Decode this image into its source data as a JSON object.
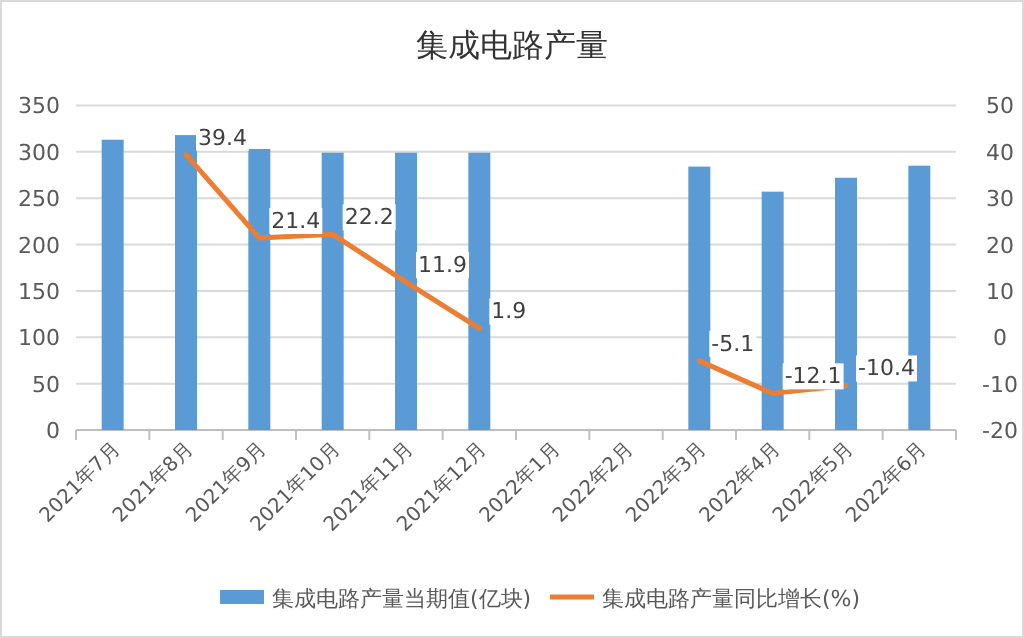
{
  "chart_data": {
    "type": "bar",
    "title": "集成电路产量",
    "categories": [
      "2021年7月",
      "2021年8月",
      "2021年9月",
      "2021年10月",
      "2021年11月",
      "2021年12月",
      "2022年1月",
      "2022年2月",
      "2022年3月",
      "2022年4月",
      "2022年5月",
      "2022年6月"
    ],
    "series": [
      {
        "name": "集成电路产量当期值(亿块)",
        "color": "#5b9bd5",
        "values": [
          313,
          318,
          303,
          299,
          299,
          299,
          null,
          null,
          284,
          257,
          272,
          285
        ]
      },
      {
        "name": "集成电路产量同比增长(%)",
        "type": "line",
        "axis": "y2",
        "color": "#ed7d31",
        "values": [
          null,
          39.4,
          21.4,
          22.2,
          11.9,
          1.9,
          null,
          null,
          -5.1,
          -12.1,
          -10.4,
          null
        ],
        "value_labels": [
          null,
          "39.4",
          "21.4",
          "22.2",
          "11.9",
          "1.9",
          null,
          null,
          "-5.1",
          "-12.1",
          "-10.4",
          null
        ]
      }
    ],
    "ylim": [
      0,
      350
    ],
    "yticks": [
      0,
      50,
      100,
      150,
      200,
      250,
      300,
      350
    ],
    "y2lim": [
      -20,
      50
    ],
    "y2ticks": [
      -20,
      -10,
      0,
      10,
      20,
      30,
      40,
      50
    ],
    "grid": "y",
    "legend": "bottom",
    "marker": "none"
  }
}
